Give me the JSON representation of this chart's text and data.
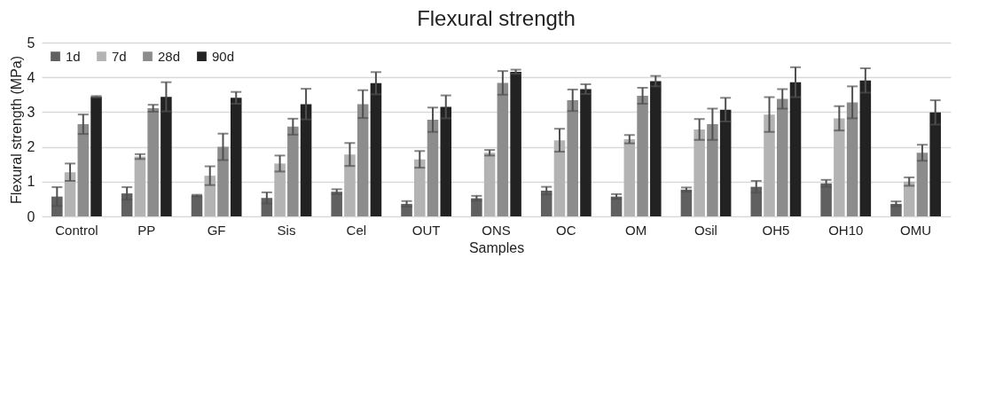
{
  "chart_data": {
    "type": "bar",
    "title": "Flexural strength",
    "xlabel": "Samples",
    "ylabel": "Flexural strength (MPa)",
    "categories": [
      "Control",
      "PP",
      "GF",
      "Sis",
      "Cel",
      "OUT",
      "ONS",
      "OC",
      "OM",
      "Osil",
      "OH5",
      "OH10",
      "OMU"
    ],
    "series": [
      {
        "name": "1d",
        "color": "#606060",
        "values": [
          0.57,
          0.66,
          0.6,
          0.53,
          0.71,
          0.36,
          0.52,
          0.74,
          0.57,
          0.77,
          0.85,
          0.95,
          0.36
        ],
        "errors": [
          0.27,
          0.18,
          0.02,
          0.16,
          0.07,
          0.08,
          0.07,
          0.11,
          0.07,
          0.06,
          0.17,
          0.1,
          0.07
        ]
      },
      {
        "name": "7d",
        "color": "#b3b3b3",
        "values": [
          1.27,
          1.72,
          1.17,
          1.52,
          1.78,
          1.64,
          1.83,
          2.19,
          2.22,
          2.5,
          2.93,
          2.82,
          1.0
        ],
        "errors": [
          0.25,
          0.07,
          0.27,
          0.23,
          0.33,
          0.24,
          0.08,
          0.33,
          0.12,
          0.3,
          0.5,
          0.35,
          0.12
        ]
      },
      {
        "name": "28d",
        "color": "#8c8c8c",
        "values": [
          2.65,
          3.11,
          2.0,
          2.58,
          3.23,
          2.78,
          3.84,
          3.34,
          3.47,
          2.65,
          3.38,
          3.28,
          1.83
        ],
        "errors": [
          0.28,
          0.1,
          0.38,
          0.23,
          0.4,
          0.35,
          0.34,
          0.31,
          0.23,
          0.45,
          0.28,
          0.46,
          0.23
        ]
      },
      {
        "name": "90d",
        "color": "#222222",
        "values": [
          3.44,
          3.44,
          3.41,
          3.23,
          3.83,
          3.15,
          4.16,
          3.66,
          3.89,
          3.07,
          3.86,
          3.91,
          2.99
        ],
        "errors": [
          0.02,
          0.42,
          0.17,
          0.44,
          0.32,
          0.33,
          0.06,
          0.14,
          0.15,
          0.34,
          0.43,
          0.35,
          0.35
        ]
      }
    ],
    "ylim": [
      0,
      5
    ],
    "yticks": [
      0,
      1,
      2,
      3,
      4,
      5
    ],
    "grid": "y",
    "legend": "top left"
  }
}
